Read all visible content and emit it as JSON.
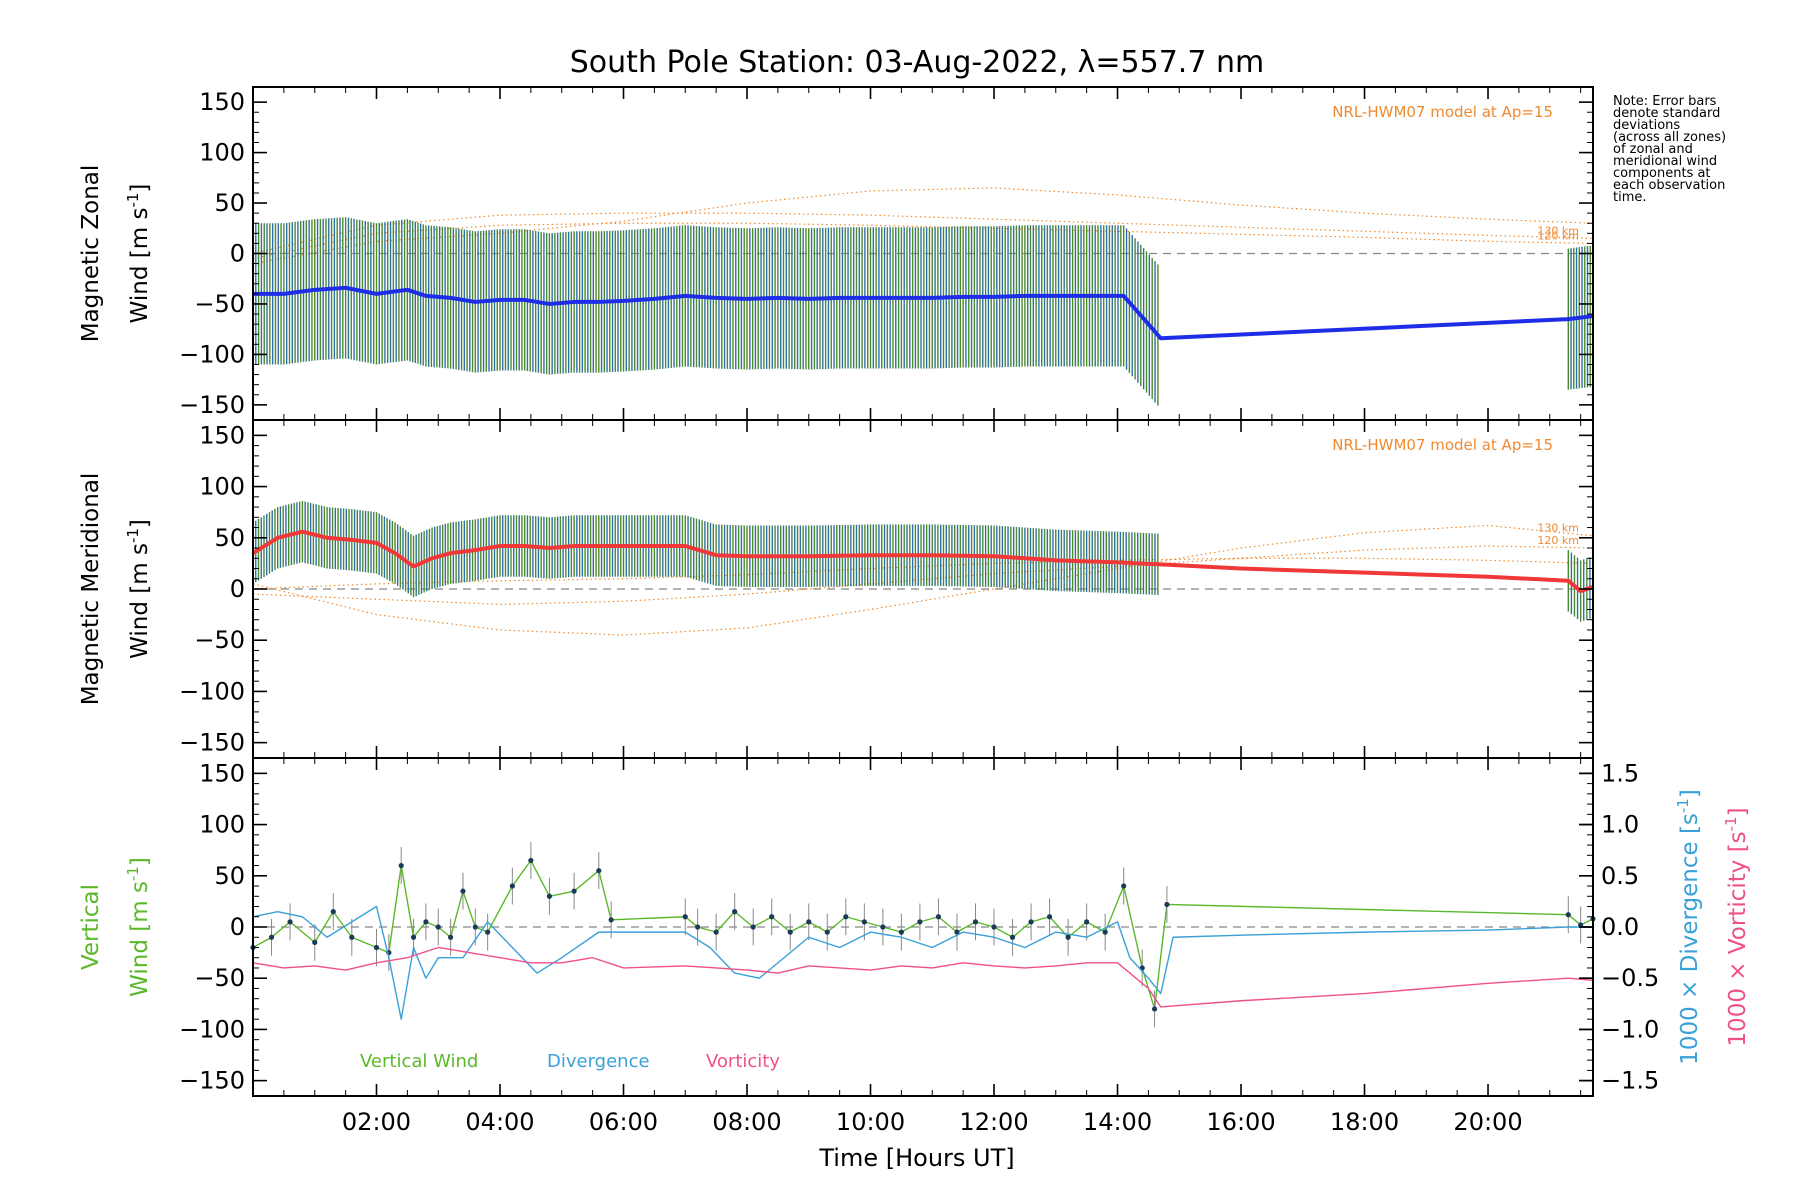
{
  "chart_data": {
    "title": "South Pole Station: 03-Aug-2022, λ=557.7 nm",
    "type": "line",
    "xlabel": "Time [Hours UT]",
    "xlim": [
      0,
      21.7
    ],
    "xtick_values": [
      2,
      4,
      6,
      8,
      10,
      12,
      14,
      16,
      18,
      20
    ],
    "xtick_labels": [
      "02:00",
      "04:00",
      "06:00",
      "08:00",
      "10:00",
      "12:00",
      "14:00",
      "16:00",
      "18:00",
      "20:00"
    ],
    "note_lines": [
      "Note: Error bars",
      "denote standard",
      "deviations",
      "(across all zones)",
      "of zonal and",
      "meridional wind",
      "components at",
      "each observation",
      "time."
    ],
    "panels": [
      {
        "id": "zonal",
        "ylabel_line1": "Magnetic Zonal",
        "ylabel_line2_prefix": "Wind [m s",
        "ylabel_sup": "-1",
        "ylabel_suffix": "]",
        "ylim": [
          -165,
          165
        ],
        "ytick_values": [
          150,
          100,
          50,
          0,
          -50,
          -100,
          -150
        ],
        "ytick_labels": [
          "150",
          "100",
          "50",
          "0",
          "−50",
          "−100",
          "−150"
        ],
        "model_label": "NRL-HWM07 model at Ap=15",
        "model_curves": [
          {
            "name": "130 km",
            "x": [
              0,
              2,
              4,
              6,
              8,
              10,
              12,
              14,
              16,
              18,
              20,
              21.7
            ],
            "values": [
              0,
              28,
              38,
              40,
              40,
              38,
              34,
              30,
              26,
              22,
              18,
              15
            ]
          },
          {
            "name": "120 km",
            "x": [
              0,
              2,
              4,
              6,
              8,
              10,
              12,
              14,
              16,
              18,
              20,
              21.7
            ],
            "values": [
              -5,
              20,
              28,
              30,
              30,
              28,
              25,
              22,
              19,
              16,
              12,
              10
            ]
          },
          {
            "name": "",
            "x": [
              0,
              2,
              4,
              6,
              8,
              10,
              12,
              14,
              16,
              18,
              20,
              21.7
            ],
            "values": [
              -10,
              12,
              20,
              32,
              50,
              62,
              65,
              58,
              48,
              40,
              34,
              30
            ]
          }
        ],
        "series": [
          {
            "name": "Zonal wind",
            "color": "#1e2ee8",
            "x": [
              0,
              0.5,
              1,
              1.5,
              2,
              2.5,
              2.8,
              3.2,
              3.6,
              4,
              4.4,
              4.8,
              5.2,
              5.6,
              6,
              6.5,
              7.0,
              7.5,
              8,
              8.5,
              9,
              9.5,
              10,
              10.5,
              11,
              11.5,
              12,
              12.5,
              13,
              13.5,
              14.1,
              14.7,
              21.3,
              21.7
            ],
            "values": [
              -40,
              -40,
              -36,
              -34,
              -40,
              -36,
              -42,
              -44,
              -48,
              -46,
              -46,
              -50,
              -48,
              -48,
              -47,
              -45,
              -42,
              -44,
              -45,
              -44,
              -45,
              -44,
              -44,
              -44,
              -44,
              -43,
              -43,
              -42,
              -42,
              -42,
              -42,
              -84,
              -65,
              -62
            ]
          }
        ]
      },
      {
        "id": "meridional",
        "ylabel_line1": "Magnetic Meridional",
        "ylabel_line2_prefix": "Wind [m s",
        "ylabel_sup": "-1",
        "ylabel_suffix": "]",
        "ylim": [
          -165,
          165
        ],
        "ytick_values": [
          150,
          100,
          50,
          0,
          -50,
          -100,
          -150
        ],
        "ytick_labels": [
          "150",
          "100",
          "50",
          "0",
          "−50",
          "−100",
          "−150"
        ],
        "model_label": "NRL-HWM07 model at Ap=15",
        "model_curves": [
          {
            "name": "130 km",
            "x": [
              0,
              2,
              4,
              6,
              8,
              10,
              12,
              14,
              16,
              18,
              20,
              21.7
            ],
            "values": [
              5,
              -25,
              -40,
              -45,
              -38,
              -20,
              0,
              20,
              40,
              55,
              62,
              52
            ]
          },
          {
            "name": "120 km",
            "x": [
              0,
              2,
              4,
              6,
              8,
              10,
              12,
              14,
              16,
              18,
              20,
              21.7
            ],
            "values": [
              -5,
              -10,
              -15,
              -12,
              -5,
              5,
              15,
              22,
              30,
              38,
              42,
              40
            ]
          },
          {
            "name": "",
            "x": [
              0,
              2,
              4,
              6,
              8,
              10,
              12,
              14,
              16,
              18,
              20,
              21.7
            ],
            "values": [
              0,
              5,
              8,
              10,
              14,
              20,
              25,
              28,
              30,
              30,
              28,
              25
            ]
          }
        ],
        "series": [
          {
            "name": "Meridional wind",
            "color": "#f03838",
            "x": [
              0,
              0.4,
              0.8,
              1.2,
              1.6,
              2.0,
              2.3,
              2.6,
              2.9,
              3.2,
              3.6,
              4.0,
              4.4,
              4.8,
              5.2,
              5.6,
              6.0,
              6.5,
              7.0,
              7.5,
              8.0,
              9.0,
              10.0,
              11.0,
              12.0,
              13.0,
              14.0,
              14.7,
              16.0,
              18.0,
              20.0,
              21.3,
              21.5,
              21.7
            ],
            "values": [
              35,
              50,
              56,
              50,
              48,
              45,
              35,
              22,
              30,
              35,
              38,
              42,
              42,
              40,
              42,
              42,
              42,
              42,
              42,
              33,
              32,
              32,
              33,
              33,
              32,
              28,
              26,
              24,
              20,
              16,
              12,
              8,
              -2,
              2
            ]
          }
        ]
      },
      {
        "id": "vertical",
        "ylabel_line1": "Vertical",
        "ylabel_line2_prefix": "Wind [m s",
        "ylabel_sup": "-1",
        "ylabel_suffix": "]",
        "ylim": [
          -165,
          165
        ],
        "ytick_values": [
          150,
          100,
          50,
          0,
          -50,
          -100,
          -150
        ],
        "ytick_labels": [
          "150",
          "100",
          "50",
          "0",
          "−50",
          "−100",
          "−150"
        ],
        "y2lim": [
          -1.65,
          1.65
        ],
        "y2tick_values": [
          1.5,
          1.0,
          0.5,
          0.0,
          -0.5,
          -1.0,
          -1.5
        ],
        "y2tick_labels": [
          "1.5",
          "1.0",
          "0.5",
          "0.0",
          "−0.5",
          "−1.0",
          "−1.5"
        ],
        "y2label_divergence": "1000 × Divergence [s",
        "y2label_vorticity": "1000 × Vorticity [s",
        "y2label_sup": "-1",
        "y2label_suffix": "]",
        "legend": [
          "Vertical Wind",
          "Divergence",
          "Vorticity"
        ],
        "series": [
          {
            "name": "Vertical Wind",
            "color": "#5cb82a",
            "axis": "left",
            "x": [
              0,
              0.3,
              0.6,
              1.0,
              1.3,
              1.6,
              2.0,
              2.2,
              2.4,
              2.6,
              2.8,
              3.0,
              3.2,
              3.4,
              3.6,
              3.8,
              4.2,
              4.5,
              4.8,
              5.2,
              5.6,
              5.8,
              7.0,
              7.2,
              7.5,
              7.8,
              8.1,
              8.4,
              8.7,
              9.0,
              9.3,
              9.6,
              9.9,
              10.2,
              10.5,
              10.8,
              11.1,
              11.4,
              11.7,
              12.0,
              12.3,
              12.6,
              12.9,
              13.2,
              13.5,
              13.8,
              14.1,
              14.4,
              14.6,
              14.8,
              21.3,
              21.5,
              21.7
            ],
            "values": [
              -20,
              -10,
              5,
              -15,
              15,
              -10,
              -20,
              -25,
              60,
              -10,
              5,
              0,
              -10,
              35,
              0,
              -5,
              40,
              65,
              30,
              35,
              55,
              7,
              10,
              0,
              -5,
              15,
              0,
              10,
              -5,
              5,
              -5,
              10,
              5,
              0,
              -5,
              5,
              10,
              -5,
              5,
              0,
              -10,
              5,
              10,
              -10,
              5,
              -5,
              40,
              -40,
              -80,
              22,
              12,
              2,
              8
            ]
          },
          {
            "name": "Divergence",
            "color": "#3aa0d8",
            "axis": "right",
            "x": [
              0,
              0.4,
              0.8,
              1.2,
              1.6,
              2.0,
              2.2,
              2.4,
              2.6,
              2.8,
              3.0,
              3.4,
              3.8,
              4.2,
              4.6,
              5.0,
              5.6,
              6.0,
              7.0,
              7.4,
              7.8,
              8.2,
              8.6,
              9.0,
              9.5,
              10.0,
              10.5,
              11.0,
              11.5,
              12.0,
              12.5,
              13.0,
              13.5,
              14.0,
              14.2,
              14.5,
              14.7,
              14.9,
              16.0,
              18.0,
              20.0,
              21.3,
              21.7
            ],
            "values": [
              0.1,
              0.15,
              0.1,
              -0.1,
              0.05,
              0.2,
              -0.3,
              -0.9,
              -0.2,
              -0.5,
              -0.3,
              -0.3,
              0.05,
              -0.2,
              -0.45,
              -0.3,
              -0.05,
              -0.05,
              -0.05,
              -0.2,
              -0.45,
              -0.5,
              -0.3,
              -0.1,
              -0.2,
              -0.05,
              -0.1,
              -0.2,
              -0.05,
              -0.1,
              -0.2,
              -0.05,
              -0.1,
              0.05,
              -0.3,
              -0.5,
              -0.65,
              -0.1,
              -0.08,
              -0.05,
              -0.03,
              0.0,
              0.0
            ]
          },
          {
            "name": "Vorticity",
            "color": "#f0508a",
            "axis": "right",
            "x": [
              0,
              0.5,
              1.0,
              1.5,
              2.0,
              2.5,
              3.0,
              3.5,
              4.0,
              4.5,
              5.0,
              5.5,
              6.0,
              7.0,
              7.5,
              8.0,
              8.5,
              9.0,
              9.5,
              10.0,
              10.5,
              11.0,
              11.5,
              12.0,
              12.5,
              13.0,
              13.5,
              14.0,
              14.5,
              14.7,
              16.0,
              18.0,
              20.0,
              21.3,
              21.7
            ],
            "values": [
              -0.35,
              -0.4,
              -0.38,
              -0.42,
              -0.35,
              -0.3,
              -0.2,
              -0.25,
              -0.3,
              -0.35,
              -0.35,
              -0.3,
              -0.4,
              -0.38,
              -0.4,
              -0.42,
              -0.45,
              -0.38,
              -0.4,
              -0.42,
              -0.38,
              -0.4,
              -0.35,
              -0.38,
              -0.4,
              -0.38,
              -0.35,
              -0.35,
              -0.6,
              -0.78,
              -0.72,
              -0.65,
              -0.55,
              -0.5,
              -0.52
            ]
          }
        ]
      }
    ]
  }
}
